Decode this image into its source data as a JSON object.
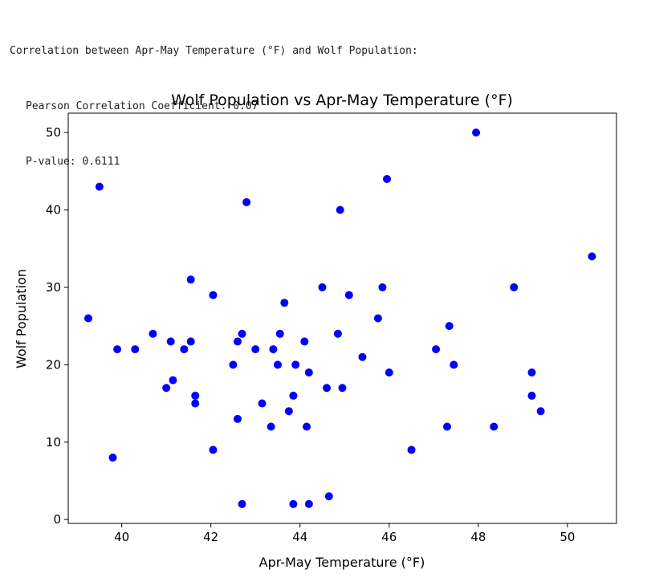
{
  "output": {
    "heading": "Correlation between Apr-May Temperature (°F) and Wolf Population:",
    "pearson": "Pearson Correlation Coefficient: 0.07",
    "pvalue": "P-value: 0.6111"
  },
  "chart_data": {
    "type": "scatter",
    "title": "Wolf Population vs Apr-May Temperature (°F)",
    "xlabel": "Apr-May Temperature (°F)",
    "ylabel": "Wolf Population",
    "xlim": [
      38.8,
      51.1
    ],
    "ylim": [
      -0.5,
      52.5
    ],
    "xticks": [
      40,
      42,
      44,
      46,
      48,
      50
    ],
    "yticks": [
      0,
      10,
      20,
      30,
      40,
      50
    ],
    "marker_color": "#0000ff",
    "grid": false,
    "points": [
      [
        39.25,
        26
      ],
      [
        39.5,
        43
      ],
      [
        39.8,
        8
      ],
      [
        39.9,
        22
      ],
      [
        40.3,
        22
      ],
      [
        40.7,
        24
      ],
      [
        41.0,
        17
      ],
      [
        41.1,
        23
      ],
      [
        41.15,
        18
      ],
      [
        41.4,
        22
      ],
      [
        41.55,
        31
      ],
      [
        41.55,
        23
      ],
      [
        41.65,
        16
      ],
      [
        41.65,
        15
      ],
      [
        42.05,
        29
      ],
      [
        42.05,
        9
      ],
      [
        42.5,
        20
      ],
      [
        42.6,
        23
      ],
      [
        42.6,
        13
      ],
      [
        42.7,
        24
      ],
      [
        42.7,
        2
      ],
      [
        42.8,
        41
      ],
      [
        43.0,
        22
      ],
      [
        43.15,
        15
      ],
      [
        43.35,
        12
      ],
      [
        43.4,
        22
      ],
      [
        43.5,
        20
      ],
      [
        43.55,
        24
      ],
      [
        43.65,
        28
      ],
      [
        43.75,
        14
      ],
      [
        43.85,
        16
      ],
      [
        43.85,
        2
      ],
      [
        43.9,
        20
      ],
      [
        44.1,
        23
      ],
      [
        44.15,
        12
      ],
      [
        44.2,
        19
      ],
      [
        44.2,
        2
      ],
      [
        44.5,
        30
      ],
      [
        44.6,
        17
      ],
      [
        44.65,
        3
      ],
      [
        44.85,
        24
      ],
      [
        44.9,
        40
      ],
      [
        44.95,
        17
      ],
      [
        45.1,
        29
      ],
      [
        45.4,
        21
      ],
      [
        45.75,
        26
      ],
      [
        45.85,
        30
      ],
      [
        45.95,
        44
      ],
      [
        46.0,
        19
      ],
      [
        46.5,
        9
      ],
      [
        47.05,
        22
      ],
      [
        47.3,
        12
      ],
      [
        47.35,
        25
      ],
      [
        47.45,
        20
      ],
      [
        47.95,
        50
      ],
      [
        48.35,
        12
      ],
      [
        48.8,
        30
      ],
      [
        49.2,
        19
      ],
      [
        49.2,
        16
      ],
      [
        49.4,
        14
      ],
      [
        50.55,
        34
      ]
    ]
  }
}
